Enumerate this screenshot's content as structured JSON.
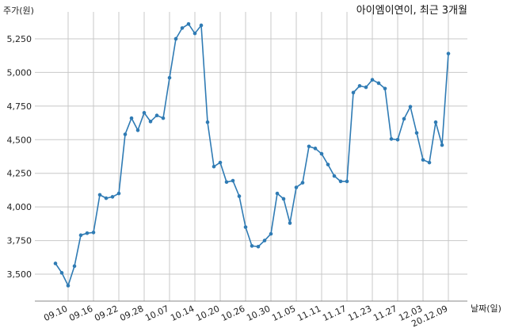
{
  "chart_data": {
    "type": "line",
    "title": "아이엠이연이, 최근 3개월",
    "ylabel": "주가(원)",
    "xlabel": "날짜(일)",
    "ylim": [
      3300,
      5450
    ],
    "yticks": [
      3500,
      3750,
      4000,
      4250,
      4500,
      4750,
      5000,
      5250
    ],
    "ytick_labels": [
      "3,500",
      "3,750",
      "4,000",
      "4,250",
      "4,500",
      "4,750",
      "5,000",
      "5,250"
    ],
    "xtick_labels": [
      "09.10",
      "09.16",
      "09.22",
      "09.28",
      "10.07",
      "10.14",
      "10.20",
      "10.26",
      "10.30",
      "11.05",
      "11.11",
      "11.17",
      "11.23",
      "11.27",
      "12.03",
      "20.12.09"
    ],
    "xtick_index": [
      2,
      6,
      10,
      14,
      18,
      22,
      26,
      30,
      34,
      38,
      42,
      46,
      50,
      54,
      58,
      62
    ],
    "grid": true,
    "series": [
      {
        "color": "#2f7bb4",
        "values": [
          3580,
          3510,
          3415,
          3560,
          3790,
          3805,
          3810,
          4090,
          4065,
          4075,
          4100,
          4540,
          4660,
          4570,
          4700,
          4635,
          4680,
          4660,
          4960,
          5250,
          5330,
          5360,
          5290,
          5350,
          4630,
          4300,
          4330,
          4185,
          4195,
          4080,
          3850,
          3710,
          3705,
          3750,
          3800,
          4100,
          4060,
          3880,
          4145,
          4180,
          4450,
          4435,
          4395,
          4315,
          4230,
          4190,
          4190,
          4850,
          4900,
          4890,
          4945,
          4920,
          4880,
          4505,
          4500,
          4655,
          4745,
          4550,
          4350,
          4330,
          4630,
          4460,
          5140
        ]
      }
    ]
  }
}
